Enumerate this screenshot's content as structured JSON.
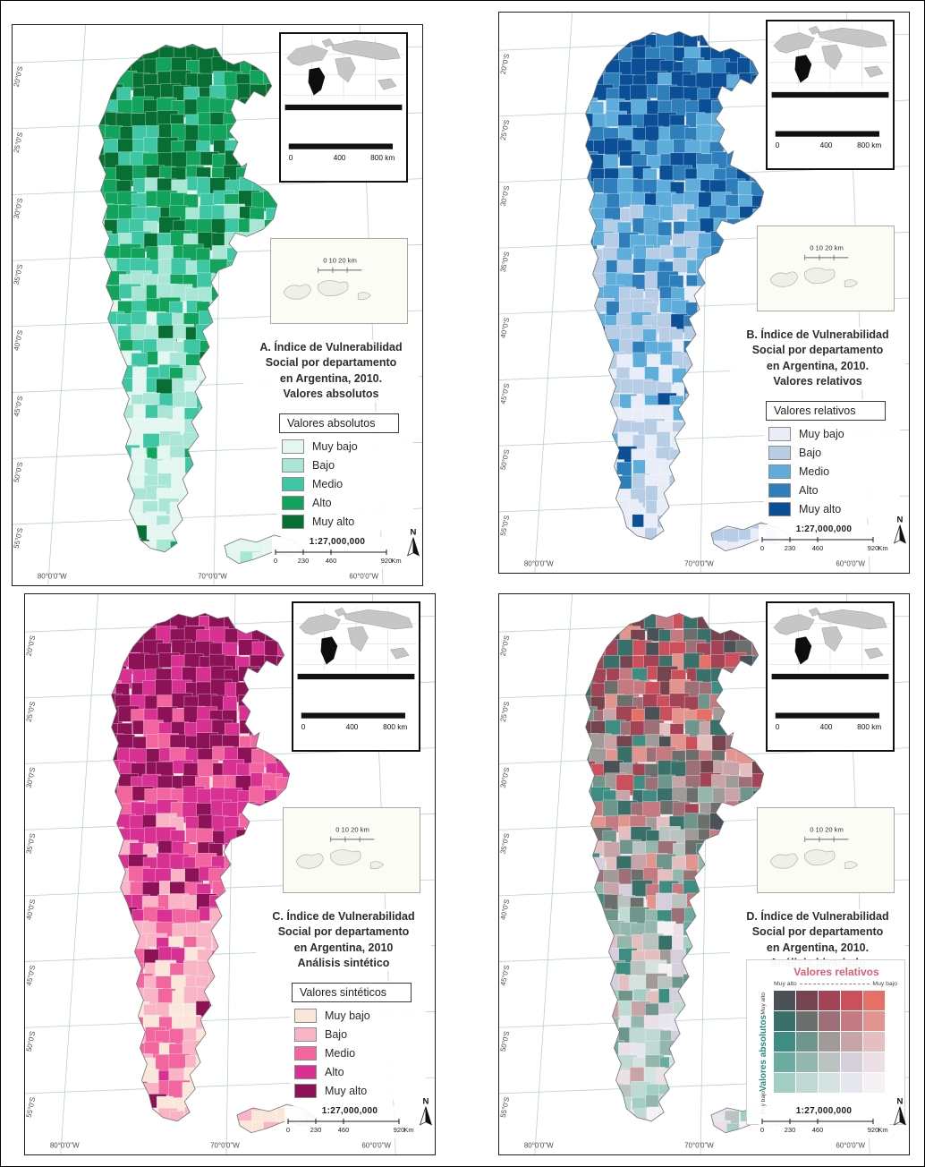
{
  "graticule": {
    "lat_labels": [
      "20°0'S",
      "25°0'S",
      "30°0'S",
      "35°0'S",
      "40°0'S",
      "45°0'S",
      "50°0'S",
      "55°0'S"
    ],
    "lon_labels": [
      "80°0'0\"W",
      "70°0'0\"W",
      "60°0'0\"W"
    ]
  },
  "world_inset": {
    "scale_labels": [
      "0",
      "400",
      "800 km"
    ]
  },
  "islands_inset": {
    "scale_label": "0  10 20 km"
  },
  "north_label": "N",
  "scalebar": {
    "ratio": "1:27,000,000",
    "ticks": [
      "0",
      "230",
      "460",
      "920"
    ],
    "unit": "Km"
  },
  "panels": [
    {
      "title_lines": [
        "A. Índice de Vulnerabilidad",
        "Social por departamento",
        "en Argentina, 2010.",
        "Valores absolutos"
      ],
      "legend_title": "Valores absolutos",
      "legend_items": [
        {
          "label": "Muy bajo",
          "color": "#e3f6f0"
        },
        {
          "label": "Bajo",
          "color": "#a9e6d6"
        },
        {
          "label": "Medio",
          "color": "#3fc7a5"
        },
        {
          "label": "Alto",
          "color": "#12a35c"
        },
        {
          "label": "Muy alto",
          "color": "#076f33"
        }
      ]
    },
    {
      "title_lines": [
        "B. Índice de Vulnerabilidad",
        "Social por departamento",
        "en Argentina, 2010.",
        "Valores relativos"
      ],
      "legend_title": "Valores relativos",
      "legend_items": [
        {
          "label": "Muy bajo",
          "color": "#e9edf7"
        },
        {
          "label": "Bajo",
          "color": "#b7cde6"
        },
        {
          "label": "Medio",
          "color": "#5fadda"
        },
        {
          "label": "Alto",
          "color": "#2e7ebc"
        },
        {
          "label": "Muy alto",
          "color": "#0b5096"
        }
      ]
    },
    {
      "title_lines": [
        "C. Índice de Vulnerabilidad",
        "Social por departamento",
        "en Argentina, 2010",
        "Análisis sintético"
      ],
      "legend_title": "Valores sintéticos",
      "legend_items": [
        {
          "label": "Muy bajo",
          "color": "#fbe7da"
        },
        {
          "label": "Bajo",
          "color": "#f9b4c5"
        },
        {
          "label": "Medio",
          "color": "#f2659f"
        },
        {
          "label": "Alto",
          "color": "#d93093"
        },
        {
          "label": "Muy alto",
          "color": "#8c1156"
        }
      ]
    },
    {
      "title_lines": [
        "D. Índice de Vulnerabilidad",
        "Social por departamento",
        "en Argentina, 2010.",
        "Análisis bivariado"
      ],
      "bivariate": {
        "x_title": "Valores relativos",
        "x_title_color": "#d95f72",
        "x_left": "Muy alto",
        "x_right": "Muy bajo",
        "y_title": "Valores absolutos",
        "y_title_color": "#2a8a80",
        "y_top": "Muy alto",
        "y_bottom": "Muy bajo",
        "colors": [
          [
            "#4a5157",
            "#75444e",
            "#a34355",
            "#cc4f5c",
            "#e66f66"
          ],
          [
            "#39706a",
            "#6d6f6d",
            "#9d7077",
            "#c57a82",
            "#e2948e"
          ],
          [
            "#3e8d82",
            "#6f968c",
            "#a09a98",
            "#c8a4a8",
            "#e4bfc0"
          ],
          [
            "#6cab9f",
            "#93b7ac",
            "#b9c4c0",
            "#d4cfda",
            "#ecdfe6"
          ],
          [
            "#a2cec4",
            "#bedad3",
            "#d5e3e0",
            "#e6e6ef",
            "#f5f1f4"
          ]
        ]
      }
    }
  ]
}
